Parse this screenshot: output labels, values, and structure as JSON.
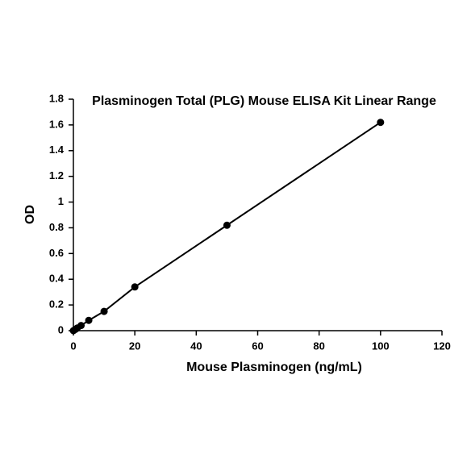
{
  "chart_data": {
    "type": "scatter",
    "title": "Plasminogen Total (PLG) Mouse ELISA Kit Linear Range",
    "x_label": "Mouse Plasminogen (ng/mL)",
    "y_label": "OD",
    "series": [
      {
        "name": "PLG",
        "color": "#000000",
        "x": [
          0,
          0.625,
          1.25,
          2.5,
          5,
          10,
          20,
          50,
          100
        ],
        "values": [
          0,
          0.01,
          0.02,
          0.04,
          0.08,
          0.15,
          0.34,
          0.82,
          1.62
        ]
      }
    ],
    "xlim": [
      0,
      120
    ],
    "xticks": [
      0,
      20,
      40,
      60,
      80,
      100,
      120
    ],
    "ylim": [
      0,
      1.8
    ],
    "yticks": [
      0,
      0.2,
      0.4,
      0.6,
      0.8,
      1,
      1.2,
      1.4,
      1.6,
      1.8
    ],
    "grid": false
  }
}
